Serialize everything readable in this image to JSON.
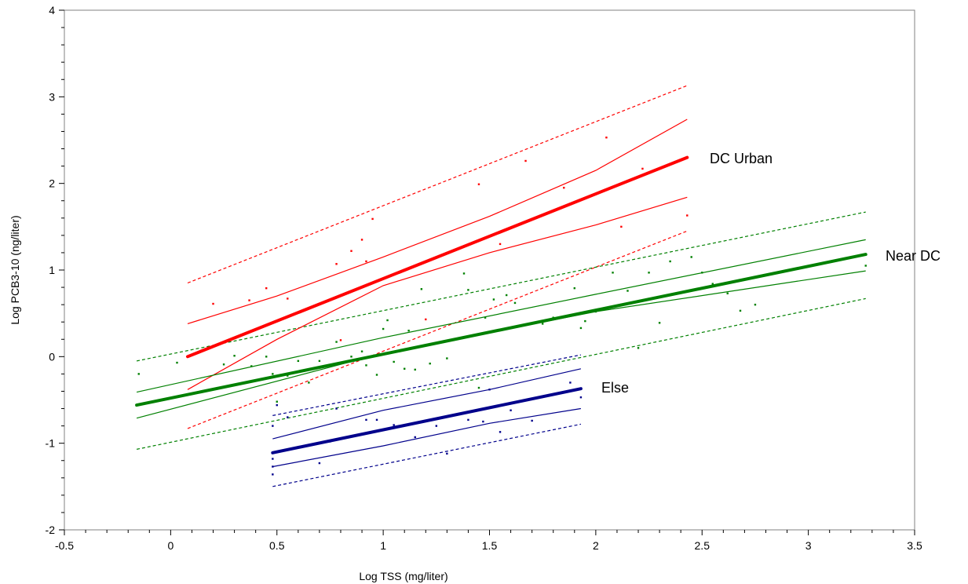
{
  "chart_data": {
    "type": "scatter",
    "title": "",
    "xlabel": "Log TSS (mg/liter)",
    "ylabel": "Log PCB3-10 (ng/liter)",
    "xlim": [
      -0.5,
      3.5
    ],
    "ylim": [
      -2,
      4
    ],
    "x_ticks": [
      "-0.5",
      "0",
      "0.5",
      "1",
      "1.5",
      "2",
      "2.5",
      "3",
      "3.5"
    ],
    "y_ticks": [
      "-2",
      "-1",
      "0",
      "1",
      "2",
      "3",
      "4"
    ],
    "grid": false,
    "legend": "none",
    "series": [
      {
        "name": "DC Urban",
        "color": "#ff0000",
        "fit": [
          [
            0.08,
            0.0
          ],
          [
            2.43,
            2.3
          ]
        ],
        "ci_upper": [
          [
            0.08,
            0.38
          ],
          [
            0.5,
            0.7
          ],
          [
            1.0,
            1.15
          ],
          [
            1.5,
            1.62
          ],
          [
            2.0,
            2.15
          ],
          [
            2.43,
            2.74
          ]
        ],
        "ci_lower": [
          [
            0.08,
            -0.38
          ],
          [
            0.5,
            0.2
          ],
          [
            1.0,
            0.82
          ],
          [
            1.5,
            1.2
          ],
          [
            2.0,
            1.52
          ],
          [
            2.43,
            1.84
          ]
        ],
        "pi_upper": [
          [
            0.08,
            0.85
          ],
          [
            2.43,
            3.13
          ]
        ],
        "pi_lower": [
          [
            0.08,
            -0.83
          ],
          [
            2.43,
            1.45
          ]
        ],
        "points": [
          [
            0.2,
            0.61
          ],
          [
            0.37,
            0.65
          ],
          [
            0.45,
            0.79
          ],
          [
            0.55,
            0.67
          ],
          [
            0.78,
            1.07
          ],
          [
            0.8,
            0.19
          ],
          [
            0.85,
            1.22
          ],
          [
            0.9,
            1.35
          ],
          [
            0.92,
            1.1
          ],
          [
            0.95,
            1.59
          ],
          [
            1.2,
            0.43
          ],
          [
            1.45,
            1.99
          ],
          [
            1.55,
            1.3
          ],
          [
            1.67,
            2.26
          ],
          [
            1.85,
            1.95
          ],
          [
            2.05,
            2.53
          ],
          [
            2.12,
            1.5
          ],
          [
            2.22,
            2.17
          ],
          [
            2.43,
            1.63
          ]
        ]
      },
      {
        "name": "Near DC",
        "color": "#008000",
        "fit": [
          [
            -0.16,
            -0.56
          ],
          [
            3.27,
            1.18
          ]
        ],
        "ci_upper": [
          [
            -0.16,
            -0.41
          ],
          [
            1.0,
            0.22
          ],
          [
            2.0,
            0.72
          ],
          [
            3.27,
            1.35
          ]
        ],
        "ci_lower": [
          [
            -0.16,
            -0.71
          ],
          [
            1.0,
            0.04
          ],
          [
            2.0,
            0.52
          ],
          [
            3.27,
            0.99
          ]
        ],
        "pi_upper": [
          [
            -0.16,
            -0.05
          ],
          [
            3.27,
            1.67
          ]
        ],
        "pi_lower": [
          [
            -0.16,
            -1.07
          ],
          [
            3.27,
            0.67
          ]
        ],
        "points": [
          [
            -0.15,
            -0.2
          ],
          [
            0.03,
            -0.07
          ],
          [
            0.25,
            -0.09
          ],
          [
            0.3,
            0.01
          ],
          [
            0.38,
            -0.11
          ],
          [
            0.45,
            0.0
          ],
          [
            0.48,
            -0.2
          ],
          [
            0.5,
            -0.52
          ],
          [
            0.55,
            -0.22
          ],
          [
            0.6,
            -0.05
          ],
          [
            0.65,
            -0.3
          ],
          [
            0.7,
            -0.05
          ],
          [
            0.78,
            0.17
          ],
          [
            0.85,
            0.0
          ],
          [
            0.9,
            0.06
          ],
          [
            0.92,
            -0.1
          ],
          [
            0.97,
            -0.21
          ],
          [
            1.0,
            0.32
          ],
          [
            1.02,
            0.42
          ],
          [
            1.05,
            -0.06
          ],
          [
            1.1,
            -0.14
          ],
          [
            1.12,
            0.3
          ],
          [
            1.15,
            -0.15
          ],
          [
            1.18,
            0.78
          ],
          [
            1.22,
            -0.08
          ],
          [
            1.3,
            -0.02
          ],
          [
            1.38,
            0.96
          ],
          [
            1.4,
            0.77
          ],
          [
            1.45,
            -0.36
          ],
          [
            1.48,
            0.45
          ],
          [
            1.52,
            0.66
          ],
          [
            1.58,
            0.71
          ],
          [
            1.62,
            0.62
          ],
          [
            1.75,
            0.38
          ],
          [
            1.8,
            0.45
          ],
          [
            1.9,
            0.79
          ],
          [
            1.93,
            0.33
          ],
          [
            1.95,
            0.41
          ],
          [
            2.0,
            0.52
          ],
          [
            2.08,
            0.97
          ],
          [
            2.15,
            0.76
          ],
          [
            2.2,
            0.1
          ],
          [
            2.25,
            0.97
          ],
          [
            2.3,
            0.39
          ],
          [
            2.35,
            1.1
          ],
          [
            2.45,
            1.15
          ],
          [
            2.5,
            0.97
          ],
          [
            2.55,
            0.84
          ],
          [
            2.62,
            0.73
          ],
          [
            2.68,
            0.53
          ],
          [
            2.75,
            0.6
          ],
          [
            3.27,
            1.05
          ]
        ]
      },
      {
        "name": "Else",
        "color": "#00008b",
        "fit": [
          [
            0.48,
            -1.11
          ],
          [
            1.93,
            -0.37
          ]
        ],
        "ci_upper": [
          [
            0.48,
            -0.95
          ],
          [
            1.0,
            -0.62
          ],
          [
            1.5,
            -0.38
          ],
          [
            1.93,
            -0.14
          ]
        ],
        "ci_lower": [
          [
            0.48,
            -1.27
          ],
          [
            1.0,
            -1.03
          ],
          [
            1.5,
            -0.77
          ],
          [
            1.93,
            -0.6
          ]
        ],
        "pi_upper": [
          [
            0.48,
            -0.68
          ],
          [
            1.93,
            0.02
          ]
        ],
        "pi_lower": [
          [
            0.48,
            -1.5
          ],
          [
            1.93,
            -0.78
          ]
        ],
        "points": [
          [
            0.48,
            -0.8
          ],
          [
            0.48,
            -1.18
          ],
          [
            0.48,
            -1.27
          ],
          [
            0.48,
            -1.36
          ],
          [
            0.5,
            -0.56
          ],
          [
            0.55,
            -0.7
          ],
          [
            0.7,
            -1.23
          ],
          [
            0.75,
            -0.98
          ],
          [
            0.78,
            -0.6
          ],
          [
            0.92,
            -0.73
          ],
          [
            0.97,
            -0.73
          ],
          [
            1.05,
            -0.79
          ],
          [
            1.15,
            -0.93
          ],
          [
            1.25,
            -0.8
          ],
          [
            1.3,
            -1.12
          ],
          [
            1.4,
            -0.73
          ],
          [
            1.47,
            -0.75
          ],
          [
            1.5,
            -0.38
          ],
          [
            1.55,
            -0.87
          ],
          [
            1.6,
            -0.62
          ],
          [
            1.7,
            -0.74
          ],
          [
            1.88,
            -0.3
          ],
          [
            1.93,
            -0.47
          ]
        ]
      }
    ]
  }
}
